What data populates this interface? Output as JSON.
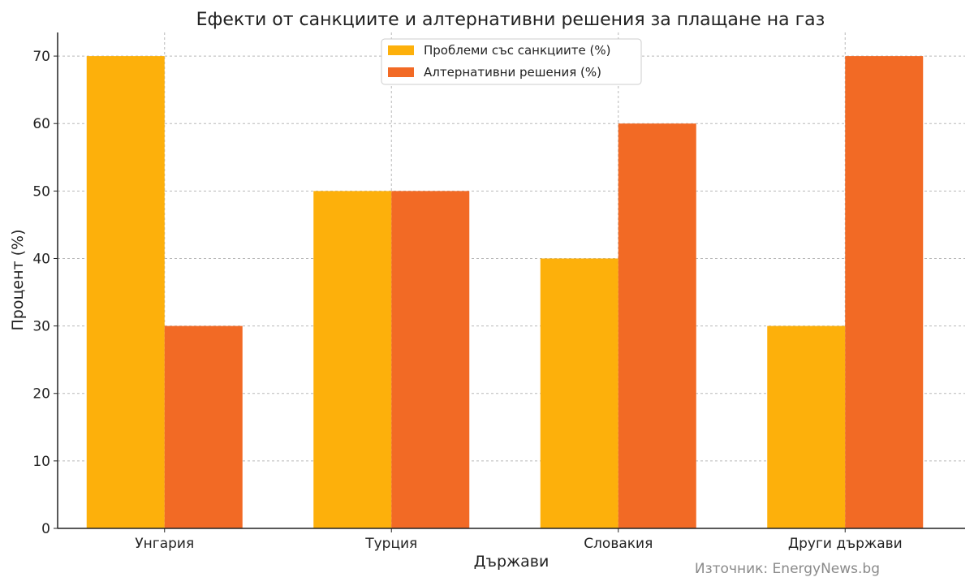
{
  "chart_data": {
    "type": "bar",
    "title": "Ефекти от санкциите и алтернативни решения за плащане на газ",
    "xlabel": "Държави",
    "ylabel": "Процент (%)",
    "categories": [
      "Унгария",
      "Турция",
      "Словакия",
      "Други държави"
    ],
    "series": [
      {
        "name": "Проблеми със санкциите (%)",
        "values": [
          70,
          50,
          40,
          30
        ],
        "color": "#FDB00B"
      },
      {
        "name": "Алтернативни решения (%)",
        "values": [
          30,
          50,
          60,
          70
        ],
        "color": "#F26A25"
      }
    ],
    "ylim": [
      0,
      73.5
    ],
    "yticks": [
      0,
      10,
      20,
      30,
      40,
      50,
      60,
      70
    ],
    "grid": true,
    "legend_position": "top-center"
  },
  "source_text": "Източник: EnergyNews.bg"
}
